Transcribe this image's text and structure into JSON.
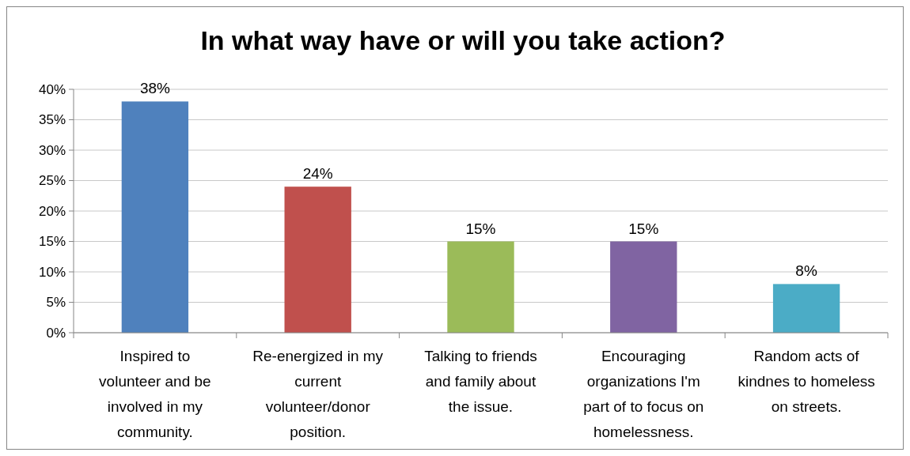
{
  "chart_data": {
    "type": "bar",
    "title": "In what way have or will you take action?",
    "categories": [
      "Inspired to volunteer and be involved in my community.",
      "Re-energized in my current volunteer/donor position.",
      "Talking to friends and family about the issue.",
      "Encouraging organizations I'm part of to focus on homelessness.",
      "Random acts of kindnes to homeless on streets."
    ],
    "values": [
      38,
      24,
      15,
      15,
      8
    ],
    "colors": [
      "#4f81bd",
      "#c0504d",
      "#9bbb59",
      "#8064a2",
      "#4bacc6"
    ],
    "value_labels": [
      "38%",
      "24%",
      "15%",
      "15%",
      "8%"
    ],
    "ylim": [
      0,
      40
    ],
    "yticks": [
      {
        "value": 0,
        "label": "0%"
      },
      {
        "value": 5,
        "label": "5%"
      },
      {
        "value": 10,
        "label": "10%"
      },
      {
        "value": 15,
        "label": "15%"
      },
      {
        "value": 20,
        "label": "20%"
      },
      {
        "value": 25,
        "label": "25%"
      },
      {
        "value": 30,
        "label": "30%"
      },
      {
        "value": 35,
        "label": "35%"
      },
      {
        "value": 40,
        "label": "40%"
      }
    ],
    "grid": "y"
  }
}
